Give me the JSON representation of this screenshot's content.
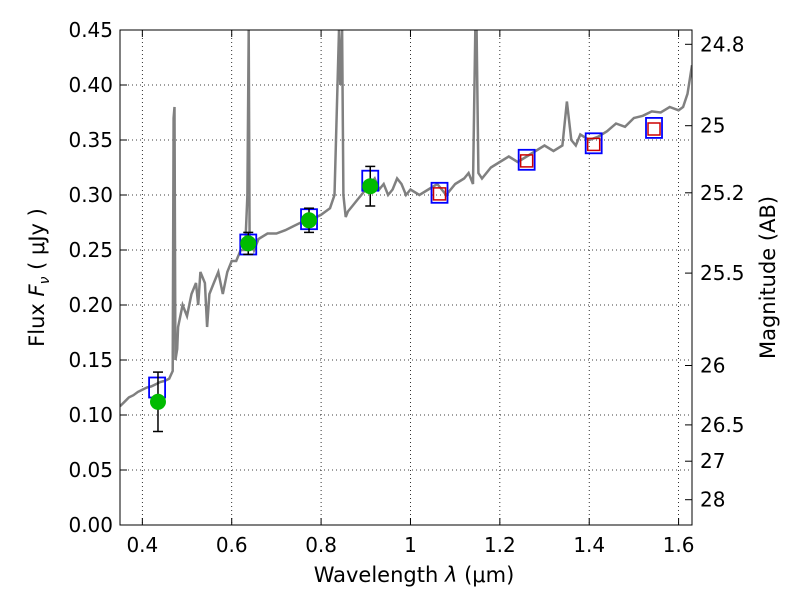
{
  "chart_data": {
    "type": "scatter",
    "xlabel": "Wavelength  λ (μm)",
    "ylabel": "Flux  F_ν  ( μJy )",
    "ylabel_parts": {
      "prefix": "Flux  ",
      "symbol": "F",
      "subscript": "ν",
      "unit": "( μJy )"
    },
    "xlabel_parts": {
      "prefix": "Wavelength  ",
      "symbol": "λ",
      "unit": " (μm)"
    },
    "y2label": "Magnitude (AB)",
    "xlim": [
      0.35,
      1.63
    ],
    "ylim": [
      0.0,
      0.45
    ],
    "grid": true,
    "x_ticks": [
      {
        "v": 0.4,
        "label": "0.4"
      },
      {
        "v": 0.6,
        "label": "0.6"
      },
      {
        "v": 0.8,
        "label": "0.8"
      },
      {
        "v": 1.0,
        "label": "1"
      },
      {
        "v": 1.2,
        "label": "1.2"
      },
      {
        "v": 1.4,
        "label": "1.4"
      },
      {
        "v": 1.6,
        "label": "1.6"
      }
    ],
    "y_ticks": [
      {
        "v": 0.0,
        "label": "0.00"
      },
      {
        "v": 0.05,
        "label": "0.05"
      },
      {
        "v": 0.1,
        "label": "0.10"
      },
      {
        "v": 0.15,
        "label": "0.15"
      },
      {
        "v": 0.2,
        "label": "0.20"
      },
      {
        "v": 0.25,
        "label": "0.25"
      },
      {
        "v": 0.3,
        "label": "0.30"
      },
      {
        "v": 0.35,
        "label": "0.35"
      },
      {
        "v": 0.4,
        "label": "0.40"
      },
      {
        "v": 0.45,
        "label": "0.45"
      }
    ],
    "y2_ticks": [
      {
        "flux": 0.437,
        "label": "24.8"
      },
      {
        "flux": 0.363,
        "label": "25"
      },
      {
        "flux": 0.302,
        "label": "25.2"
      },
      {
        "flux": 0.229,
        "label": "25.5"
      },
      {
        "flux": 0.145,
        "label": "26"
      },
      {
        "flux": 0.091,
        "label": "26.5"
      },
      {
        "flux": 0.058,
        "label": "27"
      },
      {
        "flux": 0.023,
        "label": "28"
      }
    ],
    "series": [
      {
        "type": "line",
        "color": "#808080",
        "x": [
          0.35,
          0.36,
          0.37,
          0.38,
          0.39,
          0.4,
          0.41,
          0.42,
          0.43,
          0.44,
          0.45,
          0.46,
          0.468,
          0.47,
          0.472,
          0.474,
          0.478,
          0.48,
          0.49,
          0.5,
          0.51,
          0.52,
          0.525,
          0.53,
          0.54,
          0.545,
          0.55,
          0.56,
          0.57,
          0.58,
          0.59,
          0.6,
          0.61,
          0.62,
          0.63,
          0.635,
          0.638,
          0.64,
          0.645,
          0.65,
          0.66,
          0.68,
          0.7,
          0.72,
          0.74,
          0.76,
          0.78,
          0.8,
          0.82,
          0.83,
          0.84,
          0.843,
          0.847,
          0.85,
          0.855,
          0.86,
          0.87,
          0.88,
          0.89,
          0.9,
          0.91,
          0.92,
          0.93,
          0.94,
          0.95,
          0.96,
          0.97,
          0.98,
          0.99,
          1.0,
          1.02,
          1.04,
          1.06,
          1.08,
          1.1,
          1.12,
          1.13,
          1.14,
          1.145,
          1.148,
          1.152,
          1.16,
          1.18,
          1.2,
          1.22,
          1.24,
          1.26,
          1.28,
          1.3,
          1.32,
          1.34,
          1.35,
          1.36,
          1.37,
          1.38,
          1.4,
          1.42,
          1.44,
          1.46,
          1.48,
          1.5,
          1.52,
          1.54,
          1.56,
          1.58,
          1.6,
          1.61,
          1.62,
          1.63
        ],
        "y": [
          0.108,
          0.112,
          0.116,
          0.118,
          0.121,
          0.123,
          0.125,
          0.126,
          0.128,
          0.13,
          0.131,
          0.133,
          0.14,
          0.37,
          0.38,
          0.15,
          0.16,
          0.18,
          0.2,
          0.19,
          0.21,
          0.22,
          0.2,
          0.23,
          0.22,
          0.18,
          0.21,
          0.22,
          0.23,
          0.21,
          0.23,
          0.24,
          0.24,
          0.25,
          0.25,
          0.3,
          0.45,
          0.26,
          0.26,
          0.25,
          0.26,
          0.265,
          0.265,
          0.268,
          0.272,
          0.276,
          0.278,
          0.282,
          0.288,
          0.3,
          0.45,
          0.4,
          0.45,
          0.3,
          0.28,
          0.285,
          0.29,
          0.295,
          0.3,
          0.305,
          0.31,
          0.315,
          0.305,
          0.31,
          0.3,
          0.305,
          0.315,
          0.31,
          0.3,
          0.305,
          0.3,
          0.305,
          0.31,
          0.3,
          0.31,
          0.315,
          0.32,
          0.31,
          0.45,
          0.45,
          0.32,
          0.315,
          0.325,
          0.33,
          0.335,
          0.33,
          0.335,
          0.34,
          0.345,
          0.34,
          0.345,
          0.385,
          0.35,
          0.345,
          0.355,
          0.35,
          0.353,
          0.358,
          0.365,
          0.362,
          0.37,
          0.372,
          0.376,
          0.375,
          0.38,
          0.377,
          0.38,
          0.392,
          0.418
        ]
      },
      {
        "type": "scatter",
        "marker": "square",
        "color": "#0000ff",
        "x": [
          0.433,
          0.637,
          0.773,
          0.91,
          1.065,
          1.26,
          1.41,
          1.545
        ],
        "y": [
          0.125,
          0.255,
          0.278,
          0.313,
          0.302,
          0.332,
          0.347,
          0.361
        ]
      },
      {
        "type": "scatter",
        "marker": "square",
        "color": "#cc0000",
        "x": [
          1.065,
          1.26,
          1.41,
          1.545
        ],
        "y": [
          0.301,
          0.331,
          0.346,
          0.36
        ]
      },
      {
        "type": "scatter",
        "marker": "circle",
        "color": "#00bb00",
        "x": [
          0.435,
          0.637,
          0.773,
          0.91
        ],
        "y": [
          0.112,
          0.256,
          0.277,
          0.308
        ],
        "yerr": [
          0.027,
          0.01,
          0.011,
          0.018
        ]
      }
    ]
  }
}
